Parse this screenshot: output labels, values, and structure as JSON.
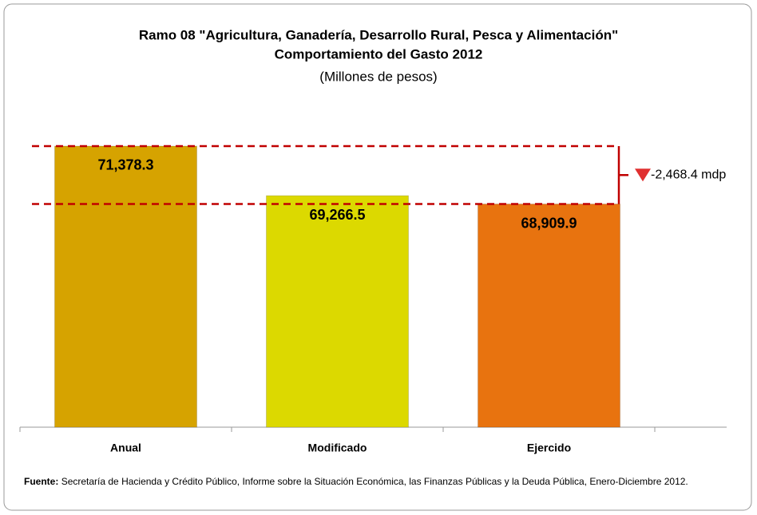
{
  "chart_data": {
    "type": "bar",
    "title": "Ramo 08 \"Agricultura, Ganadería, Desarrollo Rural, Pesca y Alimentación\"",
    "subtitle": "Comportamiento del Gasto 2012",
    "units": "(Millones de pesos)",
    "categories": [
      "Anual",
      "Modificado",
      "Ejercido"
    ],
    "values": [
      71378.3,
      69266.5,
      68909.9
    ],
    "value_labels": [
      "71,378.3",
      "69,266.5",
      "68,909.9"
    ],
    "colors": [
      "#d6a300",
      "#dcd900",
      "#e8730f"
    ],
    "ylim": [
      59400,
      72500
    ],
    "annotation": "-2,468.4 mdp",
    "source_label": "Fuente:",
    "source_text": "Secretaría de Hacienda y Crédito Público, Informe sobre la Situación Económica, las Finanzas Públicas y la Deuda Pública, Enero-Diciembre 2012."
  }
}
